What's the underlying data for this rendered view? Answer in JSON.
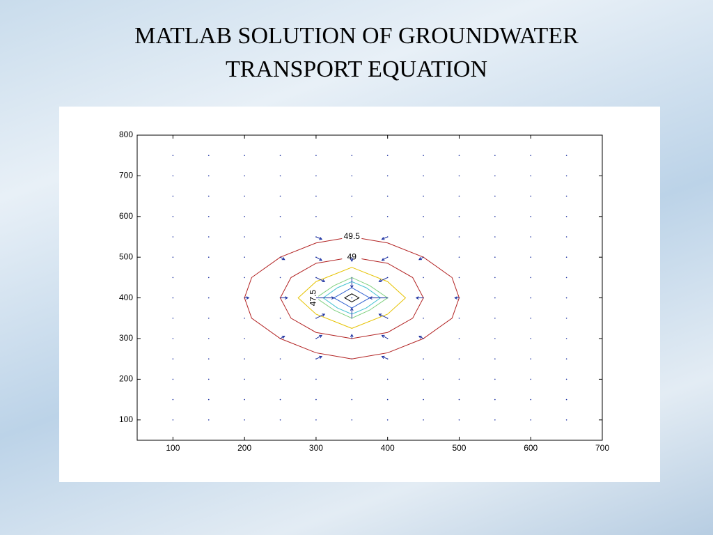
{
  "chart_data": {
    "type": "contour",
    "title": "MATLAB SOLUTION OF GROUNDWATER TRANSPORT EQUATION",
    "xlim": [
      50,
      700
    ],
    "ylim": [
      50,
      800
    ],
    "xticks": [
      100,
      200,
      300,
      400,
      500,
      600,
      700
    ],
    "yticks": [
      100,
      200,
      300,
      400,
      500,
      600,
      700,
      800
    ],
    "grid": false,
    "contours": [
      {
        "level": 49.5,
        "color": "#b22222",
        "x": [
          200,
          210,
          250,
          300,
          350,
          400,
          450,
          490,
          500,
          490,
          450,
          400,
          350,
          300,
          250,
          210
        ],
        "y": [
          400,
          450,
          500,
          535,
          550,
          535,
          500,
          450,
          400,
          350,
          300,
          265,
          250,
          265,
          300,
          350
        ]
      },
      {
        "level": 49,
        "color": "#b22222",
        "x": [
          250,
          265,
          300,
          350,
          400,
          435,
          450,
          435,
          400,
          350,
          300,
          265
        ],
        "y": [
          400,
          450,
          485,
          500,
          485,
          450,
          400,
          350,
          315,
          300,
          315,
          350
        ]
      },
      {
        "color": "#e6c200",
        "x": [
          275,
          300,
          350,
          400,
          425,
          400,
          350,
          300
        ],
        "y": [
          400,
          440,
          475,
          440,
          400,
          360,
          325,
          360
        ]
      },
      {
        "color": "#7fd07f",
        "x": [
          300,
          325,
          350,
          375,
          400,
          375,
          350,
          325
        ],
        "y": [
          400,
          430,
          450,
          430,
          400,
          370,
          350,
          370
        ]
      },
      {
        "level": 47.5,
        "color": "#40c0d0",
        "x": [
          310,
          330,
          350,
          370,
          390,
          370,
          350,
          330
        ],
        "y": [
          400,
          425,
          440,
          425,
          400,
          375,
          360,
          375
        ]
      },
      {
        "color": "#3060d0",
        "x": [
          325,
          340,
          350,
          360,
          375,
          360,
          350,
          340
        ],
        "y": [
          400,
          415,
          425,
          415,
          400,
          385,
          375,
          385
        ]
      },
      {
        "color": "#000000",
        "x": [
          340,
          350,
          360,
          350
        ],
        "y": [
          400,
          410,
          400,
          390
        ]
      }
    ],
    "quiver_color": "#1a2fa0",
    "xgrid": [
      100,
      150,
      200,
      250,
      300,
      350,
      400,
      450,
      500,
      550,
      600,
      650
    ],
    "ygrid": [
      100,
      150,
      200,
      250,
      300,
      350,
      400,
      450,
      500,
      550,
      600,
      650,
      700,
      750
    ],
    "arrows": {
      "x": [
        300,
        400,
        250,
        300,
        400,
        450,
        350,
        300,
        400,
        350,
        200,
        250,
        300,
        400,
        450,
        500,
        300,
        400,
        350,
        250,
        300,
        400,
        450,
        350,
        300,
        400
      ],
      "y": [
        550,
        550,
        500,
        500,
        500,
        500,
        500,
        450,
        450,
        450,
        400,
        400,
        400,
        400,
        400,
        400,
        350,
        350,
        350,
        300,
        300,
        300,
        300,
        300,
        250,
        250
      ],
      "u": [
        8,
        -8,
        6,
        8,
        -8,
        -6,
        0,
        12,
        -12,
        0,
        6,
        10,
        25,
        -25,
        -10,
        -6,
        12,
        -12,
        0,
        6,
        8,
        -8,
        -6,
        0,
        8,
        -8
      ],
      "v": [
        -6,
        -6,
        -6,
        -8,
        -8,
        -6,
        -10,
        -10,
        -10,
        -25,
        0,
        0,
        0,
        0,
        0,
        0,
        10,
        10,
        25,
        6,
        8,
        8,
        6,
        10,
        6,
        6
      ]
    }
  }
}
